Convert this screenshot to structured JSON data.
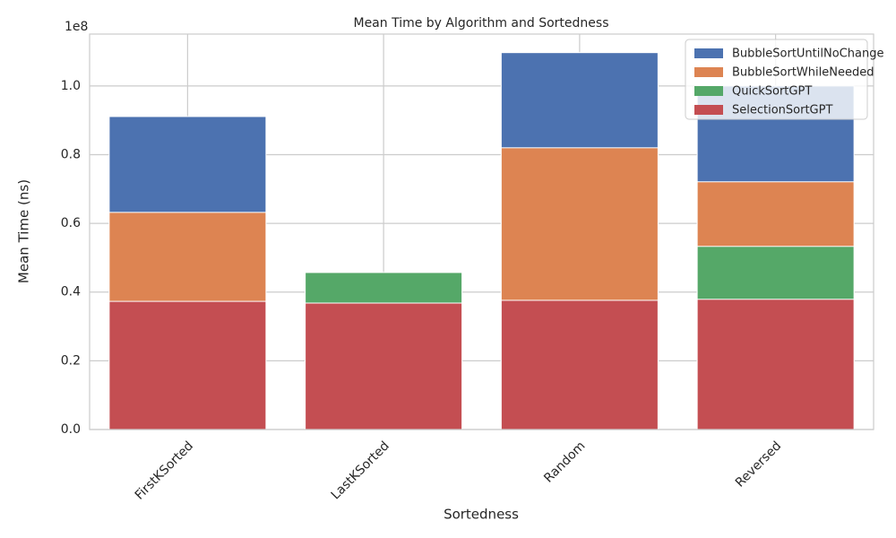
{
  "chart_data": {
    "type": "bar",
    "title": "Mean Time by Algorithm and Sortedness",
    "x_label": "Sortedness",
    "y_label": "Mean Time (ns)",
    "y_offset_label": "1e8",
    "categories": [
      "FirstKSorted",
      "LastKSorted",
      "Random",
      "Reversed"
    ],
    "series": [
      {
        "name": "BubbleSortUntilNoChange",
        "color": "#4c72b0",
        "values": [
          91100000,
          null,
          109700000,
          100000000
        ]
      },
      {
        "name": "BubbleSortWhileNeeded",
        "color": "#dd8452",
        "values": [
          63200000,
          null,
          82000000,
          72100000
        ]
      },
      {
        "name": "QuickSortGPT",
        "color": "#55a868",
        "values": [
          null,
          45700000,
          null,
          53300000
        ]
      },
      {
        "name": "SelectionSortGPT",
        "color": "#c44e52",
        "values": [
          37300000,
          36800000,
          37600000,
          37900000
        ]
      }
    ],
    "ylim": [
      0,
      115100000
    ],
    "yticks": [
      {
        "value": 0,
        "label": "0.0"
      },
      {
        "value": 20000000,
        "label": "0.2"
      },
      {
        "value": 40000000,
        "label": "0.4"
      },
      {
        "value": 60000000,
        "label": "0.6"
      },
      {
        "value": 80000000,
        "label": "0.8"
      },
      {
        "value": 100000000,
        "label": "1.0"
      }
    ],
    "grid": true,
    "legend": "upper right"
  }
}
